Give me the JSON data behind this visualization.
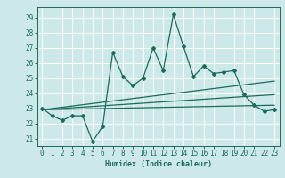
{
  "xlabel": "Humidex (Indice chaleur)",
  "bg_color": "#cce8e8",
  "line_color": "#1a6b5a",
  "grid_color": "#ffffff",
  "xlim": [
    -0.5,
    23.5
  ],
  "ylim": [
    20.5,
    29.7
  ],
  "yticks": [
    21,
    22,
    23,
    24,
    25,
    26,
    27,
    28,
    29
  ],
  "xticks": [
    0,
    1,
    2,
    3,
    4,
    5,
    6,
    7,
    8,
    9,
    10,
    11,
    12,
    13,
    14,
    15,
    16,
    17,
    18,
    19,
    20,
    21,
    22,
    23
  ],
  "main_line": {
    "x": [
      0,
      1,
      2,
      3,
      4,
      5,
      6,
      7,
      8,
      9,
      10,
      11,
      12,
      13,
      14,
      15,
      16,
      17,
      18,
      19,
      20,
      21,
      22,
      23
    ],
    "y": [
      23.0,
      22.5,
      22.2,
      22.5,
      22.5,
      20.8,
      21.8,
      26.7,
      25.1,
      24.5,
      25.0,
      27.0,
      25.5,
      29.2,
      27.1,
      25.1,
      25.8,
      25.3,
      25.4,
      25.5,
      23.9,
      23.2,
      22.8,
      22.9
    ]
  },
  "trend_lines": [
    {
      "x": [
        0,
        23
      ],
      "y": [
        22.9,
        24.8
      ]
    },
    {
      "x": [
        0,
        23
      ],
      "y": [
        22.9,
        23.9
      ]
    },
    {
      "x": [
        0,
        23
      ],
      "y": [
        22.9,
        23.2
      ]
    }
  ]
}
